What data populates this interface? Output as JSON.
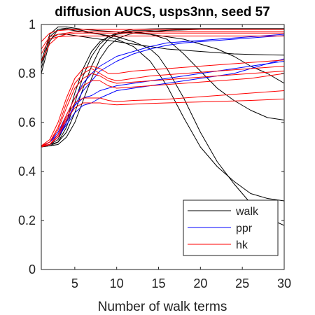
{
  "chart_data": {
    "type": "line",
    "title": "diffusion AUCS, usps3nn, seed 57",
    "xlabel": "Number of walk terms",
    "ylabel": "",
    "xlim": [
      1,
      30
    ],
    "ylim": [
      0,
      1
    ],
    "xticks": [
      5,
      10,
      15,
      20,
      25,
      30
    ],
    "yticks": [
      0,
      0.2,
      0.4,
      0.6,
      0.8,
      1
    ],
    "xtick_labels": [
      "5",
      "10",
      "15",
      "20",
      "25",
      "30"
    ],
    "ytick_labels": [
      "0",
      "0.2",
      "0.4",
      "0.6",
      "0.8",
      "1"
    ],
    "grid": false,
    "legend_position": "bottom-right",
    "colors": {
      "walk": "#000000",
      "ppr": "#0000ff",
      "hk": "#ff0000"
    },
    "legend": [
      {
        "label": "walk",
        "color": "#000000"
      },
      {
        "label": "ppr",
        "color": "#0000ff"
      },
      {
        "label": "hk",
        "color": "#ff0000"
      }
    ],
    "series": [
      {
        "group": "walk",
        "x": [
          1,
          2,
          3,
          4,
          5,
          6,
          8,
          10,
          12,
          14,
          16,
          18,
          20,
          22,
          24,
          26,
          28,
          30
        ],
        "y": [
          0.85,
          0.96,
          0.99,
          0.99,
          0.985,
          0.98,
          0.975,
          0.97,
          0.965,
          0.96,
          0.95,
          0.94,
          0.92,
          0.9,
          0.87,
          0.83,
          0.8,
          0.76
        ]
      },
      {
        "group": "walk",
        "x": [
          1,
          2,
          3,
          4,
          5,
          6,
          8,
          10,
          12,
          14,
          16,
          18,
          20,
          22,
          24,
          26,
          28,
          30
        ],
        "y": [
          0.8,
          0.93,
          0.98,
          0.985,
          0.98,
          0.975,
          0.96,
          0.94,
          0.91,
          0.85,
          0.75,
          0.62,
          0.5,
          0.42,
          0.36,
          0.31,
          0.29,
          0.28
        ]
      },
      {
        "group": "walk",
        "x": [
          1,
          2,
          3,
          4,
          5,
          6,
          8,
          10,
          12,
          14,
          15,
          16,
          18,
          20,
          22,
          24,
          26,
          28,
          30
        ],
        "y": [
          0.82,
          0.95,
          0.98,
          0.98,
          0.975,
          0.97,
          0.96,
          0.95,
          0.93,
          0.9,
          0.87,
          0.82,
          0.7,
          0.56,
          0.44,
          0.35,
          0.27,
          0.21,
          0.18
        ]
      },
      {
        "group": "walk",
        "x": [
          1,
          2,
          3,
          4,
          6,
          8,
          10,
          12,
          14,
          16,
          18,
          20,
          22,
          24,
          26,
          28,
          30
        ],
        "y": [
          0.84,
          0.94,
          0.96,
          0.96,
          0.95,
          0.94,
          0.93,
          0.92,
          0.91,
          0.9,
          0.895,
          0.89,
          0.885,
          0.88,
          0.878,
          0.876,
          0.875
        ]
      },
      {
        "group": "walk",
        "x": [
          1,
          2,
          3,
          4,
          5,
          6,
          7,
          8,
          9,
          10,
          12,
          14,
          16,
          18,
          20,
          22,
          24,
          26,
          28,
          30
        ],
        "y": [
          0.505,
          0.51,
          0.53,
          0.6,
          0.72,
          0.82,
          0.89,
          0.93,
          0.95,
          0.96,
          0.97,
          0.96,
          0.94,
          0.88,
          0.81,
          0.74,
          0.69,
          0.65,
          0.62,
          0.61
        ]
      },
      {
        "group": "walk",
        "x": [
          1,
          2,
          3,
          4,
          5,
          6,
          7,
          8,
          9,
          10,
          11,
          12,
          14,
          16,
          20,
          25,
          30
        ],
        "y": [
          0.505,
          0.51,
          0.52,
          0.56,
          0.64,
          0.74,
          0.83,
          0.9,
          0.94,
          0.96,
          0.97,
          0.975,
          0.975,
          0.97,
          0.97,
          0.97,
          0.97
        ]
      },
      {
        "group": "walk",
        "x": [
          1,
          2,
          3,
          4,
          5,
          6,
          7,
          8,
          9,
          10,
          11,
          12,
          14,
          16,
          20,
          25,
          30
        ],
        "y": [
          0.5,
          0.505,
          0.52,
          0.58,
          0.68,
          0.79,
          0.87,
          0.92,
          0.95,
          0.965,
          0.975,
          0.98,
          0.982,
          0.983,
          0.983,
          0.983,
          0.983
        ]
      },
      {
        "group": "walk",
        "x": [
          1,
          2,
          3,
          4,
          5,
          6,
          7,
          8,
          9,
          10,
          11,
          12,
          14,
          16,
          20,
          25,
          30
        ],
        "y": [
          0.5,
          0.505,
          0.51,
          0.54,
          0.6,
          0.69,
          0.78,
          0.86,
          0.91,
          0.94,
          0.955,
          0.965,
          0.972,
          0.976,
          0.98,
          0.982,
          0.982
        ]
      },
      {
        "group": "ppr",
        "x": [
          1,
          2,
          3,
          4,
          5,
          6,
          7,
          8,
          10,
          12,
          14,
          16,
          18,
          20,
          22,
          24,
          26,
          28,
          30
        ],
        "y": [
          0.5,
          0.52,
          0.56,
          0.63,
          0.7,
          0.76,
          0.8,
          0.83,
          0.87,
          0.89,
          0.91,
          0.925,
          0.93,
          0.935,
          0.94,
          0.945,
          0.95,
          0.955,
          0.96
        ]
      },
      {
        "group": "ppr",
        "x": [
          1,
          2,
          3,
          4,
          5,
          6,
          7,
          8,
          10,
          12,
          14,
          16,
          18,
          20,
          22,
          24,
          26,
          28,
          30
        ],
        "y": [
          0.5,
          0.51,
          0.54,
          0.6,
          0.67,
          0.73,
          0.77,
          0.81,
          0.85,
          0.88,
          0.9,
          0.915,
          0.925,
          0.93,
          0.935,
          0.94,
          0.945,
          0.95,
          0.955
        ]
      },
      {
        "group": "ppr",
        "x": [
          1,
          2,
          3,
          4,
          5,
          6,
          7,
          8,
          10,
          12,
          14,
          16,
          18,
          20,
          22,
          24,
          26,
          28,
          30
        ],
        "y": [
          0.505,
          0.52,
          0.55,
          0.61,
          0.67,
          0.7,
          0.71,
          0.73,
          0.75,
          0.76,
          0.77,
          0.78,
          0.79,
          0.8,
          0.81,
          0.82,
          0.83,
          0.84,
          0.85
        ]
      },
      {
        "group": "ppr",
        "x": [
          1,
          2,
          3,
          4,
          5,
          6,
          7,
          8,
          10,
          12,
          14,
          16,
          18,
          20,
          22,
          24,
          26,
          28,
          30
        ],
        "y": [
          0.505,
          0.51,
          0.54,
          0.59,
          0.64,
          0.67,
          0.68,
          0.7,
          0.73,
          0.74,
          0.75,
          0.76,
          0.77,
          0.78,
          0.79,
          0.8,
          0.82,
          0.84,
          0.86
        ]
      },
      {
        "group": "hk",
        "x": [
          1,
          2,
          3,
          4,
          5,
          6,
          8,
          10,
          15,
          20,
          25,
          30
        ],
        "y": [
          0.85,
          0.92,
          0.95,
          0.96,
          0.965,
          0.965,
          0.965,
          0.965,
          0.965,
          0.965,
          0.965,
          0.965
        ]
      },
      {
        "group": "hk",
        "x": [
          1,
          2,
          3,
          4,
          5,
          6,
          8,
          10,
          15,
          20,
          25,
          30
        ],
        "y": [
          0.9,
          0.95,
          0.96,
          0.965,
          0.97,
          0.97,
          0.97,
          0.97,
          0.97,
          0.97,
          0.97,
          0.97
        ]
      },
      {
        "group": "hk",
        "x": [
          1,
          2,
          3,
          4,
          5,
          6,
          8,
          10,
          15,
          20,
          25,
          30
        ],
        "y": [
          0.88,
          0.94,
          0.95,
          0.952,
          0.953,
          0.953,
          0.953,
          0.953,
          0.953,
          0.953,
          0.953,
          0.953
        ]
      },
      {
        "group": "hk",
        "x": [
          1,
          2,
          3,
          4,
          5,
          6,
          8,
          10,
          15,
          20,
          25,
          30
        ],
        "y": [
          0.93,
          0.965,
          0.975,
          0.978,
          0.979,
          0.98,
          0.98,
          0.98,
          0.98,
          0.98,
          0.98,
          0.98
        ]
      },
      {
        "group": "hk",
        "x": [
          1,
          2,
          3,
          4,
          5,
          6,
          7,
          8,
          9,
          10,
          12,
          14,
          16,
          18,
          20,
          22,
          24,
          26,
          28,
          30
        ],
        "y": [
          0.505,
          0.53,
          0.6,
          0.7,
          0.78,
          0.82,
          0.83,
          0.82,
          0.8,
          0.8,
          0.81,
          0.815,
          0.82,
          0.825,
          0.83,
          0.835,
          0.84,
          0.845,
          0.85,
          0.855
        ]
      },
      {
        "group": "hk",
        "x": [
          1,
          2,
          3,
          4,
          5,
          6,
          7,
          8,
          9,
          10,
          12,
          14,
          16,
          18,
          20,
          22,
          24,
          26,
          28,
          30
        ],
        "y": [
          0.505,
          0.52,
          0.58,
          0.68,
          0.76,
          0.8,
          0.82,
          0.8,
          0.78,
          0.77,
          0.78,
          0.79,
          0.795,
          0.8,
          0.805,
          0.81,
          0.815,
          0.82,
          0.825,
          0.83
        ]
      },
      {
        "group": "hk",
        "x": [
          1,
          2,
          3,
          4,
          5,
          6,
          7,
          8,
          9,
          10,
          12,
          14,
          16,
          18,
          20,
          22,
          24,
          26,
          28,
          30
        ],
        "y": [
          0.5,
          0.52,
          0.57,
          0.66,
          0.74,
          0.78,
          0.8,
          0.79,
          0.77,
          0.76,
          0.765,
          0.77,
          0.775,
          0.78,
          0.785,
          0.79,
          0.795,
          0.8,
          0.805,
          0.81
        ]
      },
      {
        "group": "hk",
        "x": [
          1,
          2,
          3,
          4,
          5,
          6,
          7,
          8,
          9,
          10,
          12,
          14,
          16,
          18,
          20,
          22,
          24,
          26,
          28,
          30
        ],
        "y": [
          0.5,
          0.51,
          0.55,
          0.63,
          0.7,
          0.75,
          0.77,
          0.77,
          0.75,
          0.74,
          0.745,
          0.75,
          0.755,
          0.76,
          0.765,
          0.77,
          0.775,
          0.78,
          0.79,
          0.8
        ]
      },
      {
        "group": "hk",
        "x": [
          1,
          2,
          3,
          4,
          5,
          6,
          7,
          8,
          9,
          10,
          12,
          14,
          16,
          18,
          20,
          22,
          24,
          26,
          28,
          30
        ],
        "y": [
          0.5,
          0.51,
          0.55,
          0.62,
          0.68,
          0.7,
          0.7,
          0.7,
          0.69,
          0.685,
          0.69,
          0.692,
          0.695,
          0.7,
          0.705,
          0.71,
          0.715,
          0.72,
          0.725,
          0.73
        ]
      },
      {
        "group": "hk",
        "x": [
          1,
          2,
          3,
          4,
          5,
          6,
          7,
          8,
          9,
          10,
          12,
          14,
          16,
          18,
          20,
          22,
          24,
          26,
          28,
          30
        ],
        "y": [
          0.505,
          0.51,
          0.54,
          0.61,
          0.66,
          0.68,
          0.68,
          0.68,
          0.675,
          0.672,
          0.675,
          0.678,
          0.68,
          0.682,
          0.684,
          0.686,
          0.688,
          0.69,
          0.693,
          0.696
        ]
      }
    ]
  }
}
